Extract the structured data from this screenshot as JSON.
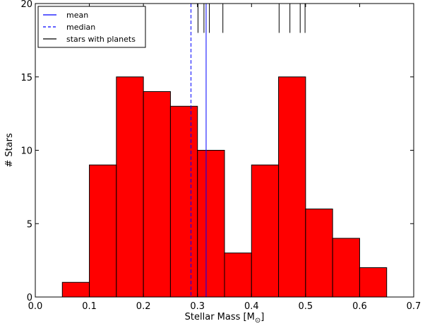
{
  "chart_data": {
    "type": "bar",
    "bin_edges": [
      0.05,
      0.1,
      0.15,
      0.2,
      0.25,
      0.3,
      0.35,
      0.4,
      0.45,
      0.5,
      0.55,
      0.6,
      0.65
    ],
    "counts": [
      1,
      9,
      15,
      14,
      13,
      10,
      3,
      9,
      15,
      6,
      4,
      2
    ],
    "bar_color": "#ff0000",
    "xlabel": "Stellar Mass [M",
    "xlabel_subscript": "⊙",
    "xlabel_suffix": "]",
    "ylabel": "# Stars",
    "xlim": [
      0.0,
      0.7
    ],
    "ylim": [
      0,
      20
    ],
    "xticks": [
      0.0,
      0.1,
      0.2,
      0.3,
      0.4,
      0.5,
      0.6,
      0.7
    ],
    "xtick_labels": [
      "0.0",
      "0.1",
      "0.2",
      "0.3",
      "0.4",
      "0.5",
      "0.6",
      "0.7"
    ],
    "yticks": [
      0,
      5,
      10,
      15,
      20
    ],
    "ytick_labels": [
      "0",
      "5",
      "10",
      "15",
      "20"
    ],
    "mean": 0.316,
    "median": 0.288,
    "mean_color": "#0000ff",
    "median_color": "#0000ff",
    "planet_host_masses": [
      0.301,
      0.312,
      0.322,
      0.347,
      0.451,
      0.471,
      0.49,
      0.499
    ],
    "planet_color": "#000000",
    "legend": {
      "position": "top-left",
      "entries": [
        {
          "label": "mean",
          "style": "solid",
          "color": "#0000ff"
        },
        {
          "label": "median",
          "style": "dashed",
          "color": "#0000ff"
        },
        {
          "label": "stars with planets",
          "style": "solid",
          "color": "#000000"
        }
      ]
    },
    "grid": false
  }
}
